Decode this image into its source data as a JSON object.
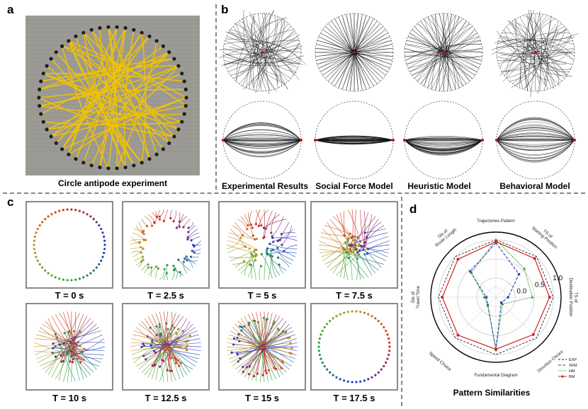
{
  "panel_labels": {
    "a": "a",
    "b": "b",
    "c": "c",
    "d": "d"
  },
  "panel_a": {
    "caption": "Circle antipode experiment"
  },
  "panel_b": {
    "captions": [
      "Experimental Results",
      "Social Force Model",
      "Heuristic Model",
      "Behavioral Model"
    ]
  },
  "panel_c": {
    "times": [
      "T = 0 s",
      "T = 2.5 s",
      "T = 5 s",
      "T = 7.5 s",
      "T = 10 s",
      "T = 12.5 s",
      "T = 15 s",
      "T = 17.5 s"
    ]
  },
  "panel_d": {
    "title": "Pattern Similarities",
    "axes": [
      "Trajectories Pattern",
      "TS of Starting Position",
      "TS of Destination Position",
      "Direction Choice",
      "Fundamental Diagram",
      "Speed Choice",
      "Dis of Travel Time",
      "Dis of Route Length"
    ],
    "ticks": [
      "0.0",
      "0.5",
      "1.0"
    ],
    "legend": [
      "EXP",
      "SFM",
      "HM",
      "BM"
    ],
    "colors": {
      "EXP": "#222222",
      "SFM": "#1f3fbf",
      "HM": "#2a9a2a",
      "BM": "#d62020"
    }
  },
  "chart_data": {
    "type": "radar",
    "title": "Pattern Similarities",
    "categories": [
      "Trajectories Pattern",
      "TS of Starting Position",
      "TS of Destination Position",
      "Direction Choice",
      "Fundamental Diagram",
      "Speed Choice",
      "Dis of Travel Time",
      "Dis of Route Length"
    ],
    "rlim": [
      -0.5,
      1.2
    ],
    "series": [
      {
        "name": "EXP",
        "values": [
          1.0,
          1.0,
          1.0,
          1.0,
          1.0,
          1.0,
          1.0,
          1.0
        ]
      },
      {
        "name": "SFM",
        "values": [
          0.92,
          0.35,
          -0.18,
          -0.3,
          0.85,
          -0.2,
          -0.25,
          0.45
        ]
      },
      {
        "name": "HM",
        "values": [
          1.0,
          0.55,
          0.45,
          -0.25,
          0.88,
          -0.2,
          -0.2,
          0.4
        ]
      },
      {
        "name": "BM",
        "values": [
          0.95,
          0.93,
          0.9,
          0.88,
          0.86,
          0.9,
          0.9,
          0.9
        ]
      }
    ]
  }
}
